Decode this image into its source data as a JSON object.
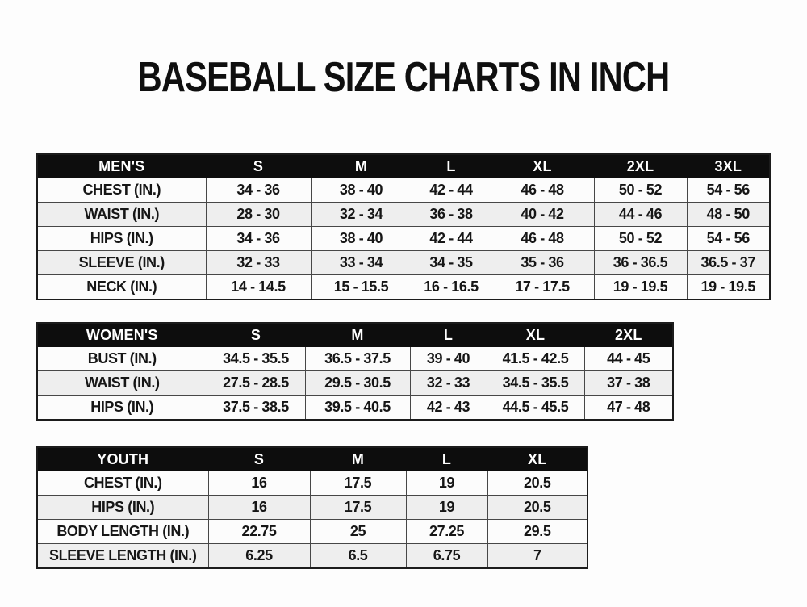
{
  "page": {
    "title": "BASEBALL SIZE CHARTS IN INCH"
  },
  "colors": {
    "header_bg": "#0d0d0d",
    "header_text": "#ffffff",
    "row_alt_bg": "#eeeeee",
    "row_bg": "#fcfcfc",
    "border": "#474747",
    "text": "#161616"
  },
  "chart_data": [
    {
      "type": "table",
      "group": "MEN'S",
      "columns": [
        "MEN'S",
        "S",
        "M",
        "L",
        "XL",
        "2XL",
        "3XL"
      ],
      "rows": [
        [
          "CHEST (IN.)",
          "34 - 36",
          "38 - 40",
          "42 - 44",
          "46 - 48",
          "50 - 52",
          "54 - 56"
        ],
        [
          "WAIST (IN.)",
          "28 - 30",
          "32 - 34",
          "36 - 38",
          "40 - 42",
          "44 - 46",
          "48 - 50"
        ],
        [
          "HIPS (IN.)",
          "34 - 36",
          "38 - 40",
          "42 - 44",
          "46 - 48",
          "50 - 52",
          "54 - 56"
        ],
        [
          "SLEEVE (IN.)",
          "32 - 33",
          "33 - 34",
          "34 - 35",
          "35 - 36",
          "36 - 36.5",
          "36.5 - 37"
        ],
        [
          "NECK (IN.)",
          "14 - 14.5",
          "15 - 15.5",
          "16 - 16.5",
          "17 - 17.5",
          "19 - 19.5",
          "19 - 19.5"
        ]
      ]
    },
    {
      "type": "table",
      "group": "WOMEN'S",
      "columns": [
        "WOMEN'S",
        "S",
        "M",
        "L",
        "XL",
        "2XL"
      ],
      "rows": [
        [
          "BUST (IN.)",
          "34.5 - 35.5",
          "36.5 - 37.5",
          "39 - 40",
          "41.5 - 42.5",
          "44 - 45"
        ],
        [
          "WAIST (IN.)",
          "27.5 - 28.5",
          "29.5 - 30.5",
          "32 - 33",
          "34.5 - 35.5",
          "37 - 38"
        ],
        [
          "HIPS (IN.)",
          "37.5 - 38.5",
          "39.5 - 40.5",
          "42 - 43",
          "44.5 - 45.5",
          "47 - 48"
        ]
      ]
    },
    {
      "type": "table",
      "group": "YOUTH",
      "columns": [
        "YOUTH",
        "S",
        "M",
        "L",
        "XL"
      ],
      "rows": [
        [
          "CHEST (IN.)",
          "16",
          "17.5",
          "19",
          "20.5"
        ],
        [
          "HIPS (IN.)",
          "16",
          "17.5",
          "19",
          "20.5"
        ],
        [
          "BODY LENGTH (IN.)",
          "22.75",
          "25",
          "27.25",
          "29.5"
        ],
        [
          "SLEEVE LENGTH (IN.)",
          "6.25",
          "6.5",
          "6.75",
          "7"
        ]
      ]
    }
  ]
}
